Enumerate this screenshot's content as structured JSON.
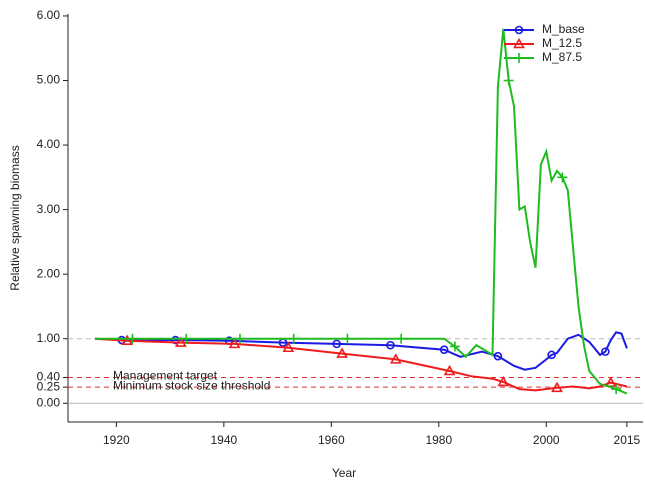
{
  "chart_data": {
    "type": "line",
    "xlabel": "Year",
    "ylabel": "Relative spawning biomass",
    "xlim": [
      1911,
      2018
    ],
    "ylim": [
      -0.29,
      6.03
    ],
    "xticks": [
      1920,
      1940,
      1960,
      1980,
      2000,
      2015
    ],
    "yticks": [
      {
        "value": 0,
        "label": "0.00"
      },
      {
        "value": 0.25,
        "label": "0.25"
      },
      {
        "value": 0.4,
        "label": "0.40"
      },
      {
        "value": 1,
        "label": "1.00"
      },
      {
        "value": 2,
        "label": "2.00"
      },
      {
        "value": 3,
        "label": "3.00"
      },
      {
        "value": 4,
        "label": "4.00"
      },
      {
        "value": 5,
        "label": "5.00"
      },
      {
        "value": 6,
        "label": "6.00"
      }
    ],
    "legend": "top-right",
    "hlines": [
      {
        "value": 1,
        "color": "#bbbbbb",
        "dashed": true
      },
      {
        "value": 0.4,
        "color": "#e03030",
        "dashed": true
      },
      {
        "value": 0.25,
        "color": "#e03030",
        "dashed": true
      },
      {
        "value": 0,
        "color": "#bbbbbb",
        "dashed": false
      }
    ],
    "annotations": [
      {
        "text": "Management target",
        "y": 0.4
      },
      {
        "text": "Minimum stock size threshold",
        "y": 0.25
      }
    ],
    "series": [
      {
        "name": "M_base",
        "color": "#1a1ae6",
        "marker": "circle",
        "x": [
          1916,
          1921,
          1931,
          1941,
          1951,
          1961,
          1971,
          1981,
          1984,
          1988,
          1991,
          1994,
          1996,
          1998,
          2000,
          2001,
          2002,
          2004,
          2006,
          2008,
          2010,
          2011,
          2012,
          2013,
          2014,
          2015
        ],
        "values": [
          1.0,
          0.98,
          0.98,
          0.97,
          0.94,
          0.92,
          0.9,
          0.83,
          0.72,
          0.8,
          0.73,
          0.58,
          0.52,
          0.55,
          0.68,
          0.75,
          0.78,
          1.0,
          1.06,
          0.95,
          0.75,
          0.8,
          0.98,
          1.1,
          1.08,
          0.85
        ]
      },
      {
        "name": "M_12.5",
        "color": "#ee1c1c",
        "marker": "triangle",
        "x": [
          1916,
          1922,
          1932,
          1942,
          1952,
          1962,
          1972,
          1982,
          1986,
          1990,
          1992,
          1995,
          1998,
          2002,
          2005,
          2008,
          2010,
          2012,
          2013,
          2015
        ],
        "values": [
          1.0,
          0.97,
          0.94,
          0.92,
          0.86,
          0.77,
          0.68,
          0.5,
          0.42,
          0.38,
          0.33,
          0.22,
          0.2,
          0.24,
          0.26,
          0.23,
          0.26,
          0.32,
          0.3,
          0.26
        ]
      },
      {
        "name": "M_87.5",
        "color": "#1fbb1f",
        "marker": "plus",
        "x": [
          1916,
          1923,
          1933,
          1943,
          1953,
          1963,
          1973,
          1981,
          1983,
          1985,
          1987,
          1989,
          1990,
          1991,
          1992,
          1993,
          1994,
          1995,
          1996,
          1997,
          1998,
          1999,
          2000,
          2001,
          2002,
          2003,
          2004,
          2005,
          2006,
          2007,
          2008,
          2010,
          2012,
          2013,
          2015
        ],
        "values": [
          1.0,
          1.0,
          1.0,
          1.0,
          1.0,
          1.0,
          1.0,
          1.0,
          0.88,
          0.72,
          0.9,
          0.8,
          0.75,
          4.9,
          5.8,
          5.0,
          4.6,
          3.0,
          3.05,
          2.5,
          2.1,
          3.7,
          3.9,
          3.45,
          3.6,
          3.5,
          3.3,
          2.4,
          1.5,
          0.9,
          0.5,
          0.3,
          0.25,
          0.22,
          0.15
        ]
      }
    ]
  }
}
